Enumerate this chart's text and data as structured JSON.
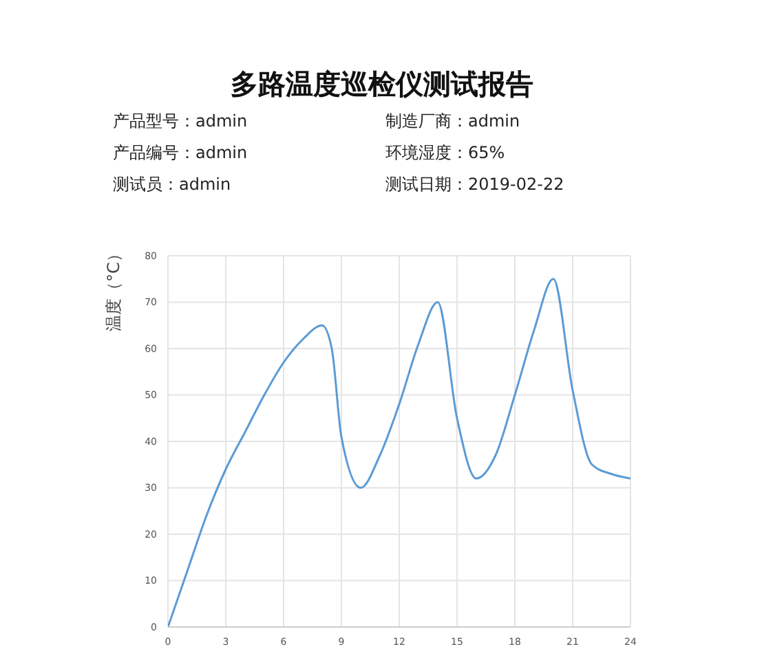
{
  "chart_data": {
    "type": "line",
    "title": "多路温度巡检仪测试报告",
    "ylabel": "温度（°C）",
    "annotations": [
      "产品型号：admin",
      "制造厂商：admin",
      "产品编号：admin",
      "环境湿度：65%",
      "测试员：admin",
      "测试日期：2019-02-22"
    ],
    "x": [
      0,
      1,
      2,
      3,
      4,
      5,
      6,
      7,
      8,
      8.5,
      9,
      10,
      11,
      12,
      13,
      14,
      15,
      16,
      17,
      18,
      19,
      20,
      21,
      22,
      23,
      24
    ],
    "series": [
      {
        "color": "#5b9bd5",
        "values": [
          0,
          12,
          24,
          34,
          42,
          50,
          57,
          62,
          65,
          60,
          41,
          30,
          37,
          48,
          61,
          70,
          45,
          32,
          37,
          50,
          64,
          75,
          51,
          35,
          33,
          32
        ]
      }
    ],
    "xlim": [
      0,
      24
    ],
    "xticks": [
      0,
      3,
      6,
      9,
      12,
      15,
      18,
      21,
      24
    ],
    "ylim": [
      0,
      80
    ],
    "yticks": [
      0,
      10,
      20,
      30,
      40,
      50,
      60,
      70,
      80
    ],
    "grid": true,
    "marker": "none",
    "line_style": "solid"
  }
}
